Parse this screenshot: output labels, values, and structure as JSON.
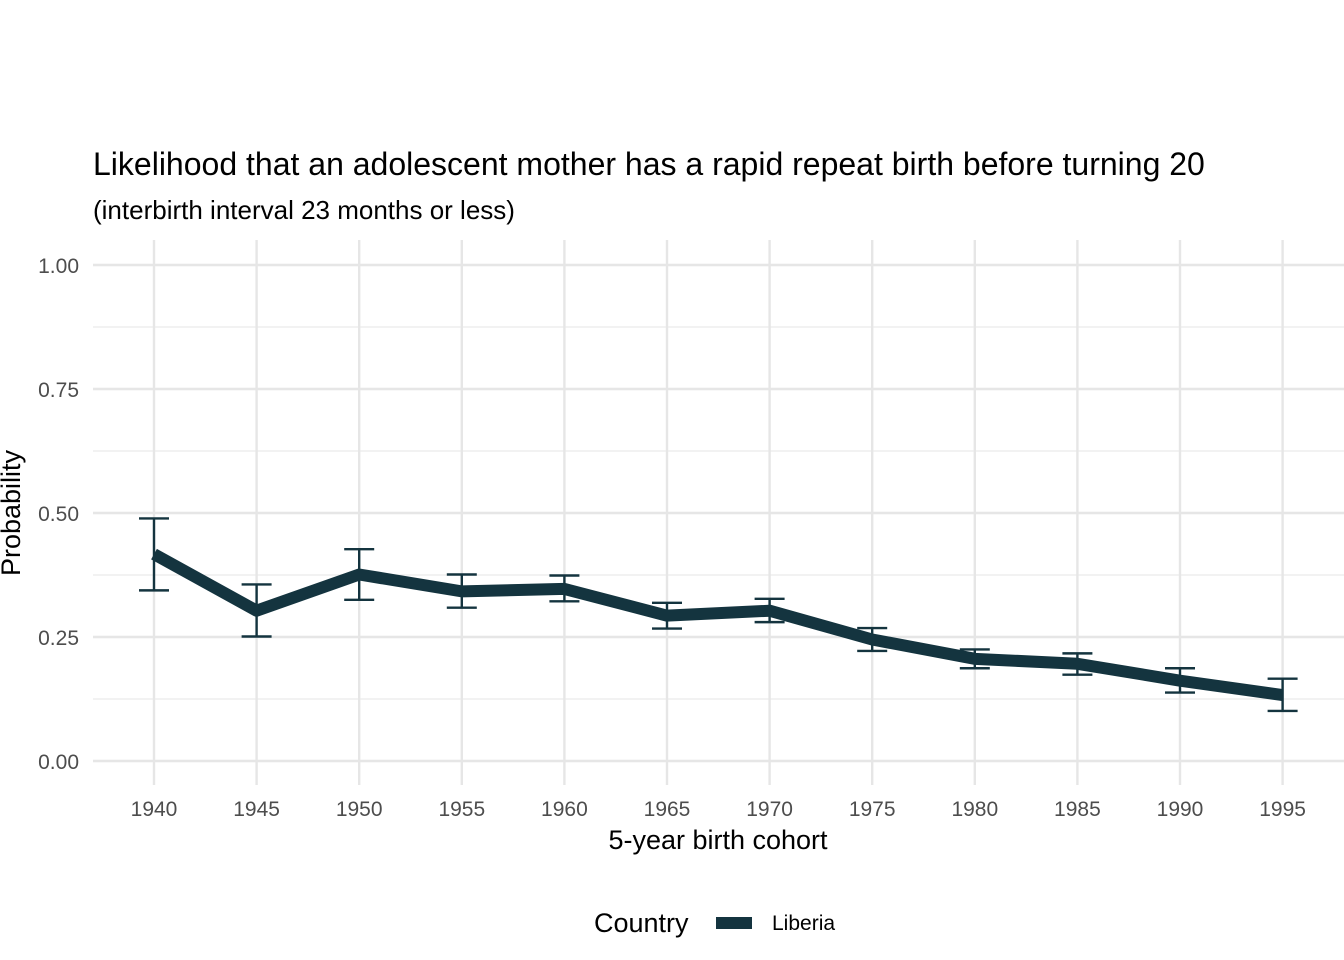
{
  "chart_data": {
    "type": "line",
    "title": "Likelihood that an adolescent mother has a rapid repeat birth before turning 20",
    "subtitle": "(interbirth interval 23 months or less)",
    "xlabel": "5-year birth cohort",
    "ylabel": "Probability",
    "x": [
      1940,
      1945,
      1950,
      1955,
      1960,
      1965,
      1970,
      1975,
      1980,
      1985,
      1990,
      1995
    ],
    "ylim": [
      0,
      1
    ],
    "yticks": [
      0.0,
      0.25,
      0.5,
      0.75,
      1.0
    ],
    "ytick_labels": [
      "0.00",
      "0.25",
      "0.50",
      "0.75",
      "1.00"
    ],
    "grid": true,
    "legend": {
      "title": "Country",
      "position": "bottom"
    },
    "series": [
      {
        "name": "Liberia",
        "color": "#14343f",
        "values": [
          0.417,
          0.303,
          0.376,
          0.342,
          0.347,
          0.293,
          0.303,
          0.245,
          0.206,
          0.196,
          0.162,
          0.133
        ],
        "lower": [
          0.344,
          0.251,
          0.325,
          0.309,
          0.322,
          0.267,
          0.28,
          0.222,
          0.187,
          0.174,
          0.138,
          0.101
        ],
        "upper": [
          0.489,
          0.356,
          0.427,
          0.376,
          0.374,
          0.319,
          0.327,
          0.268,
          0.225,
          0.217,
          0.187,
          0.166
        ]
      }
    ]
  }
}
